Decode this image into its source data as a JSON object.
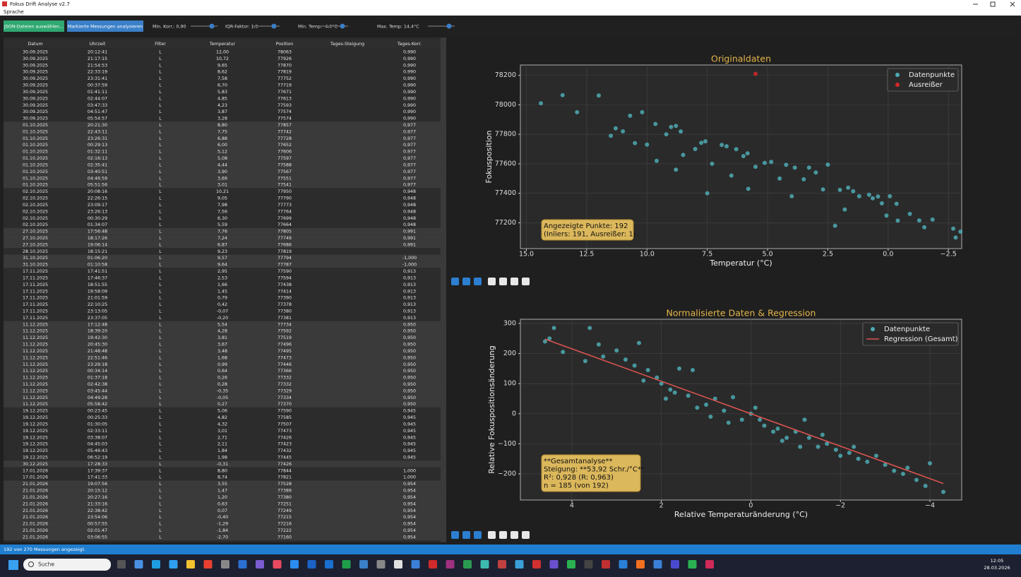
{
  "window": {
    "title": "Fokus Drift Analyse v2.7",
    "menu": "Sprache"
  },
  "toolbar": {
    "buttons": [
      "JSON-Dateien auswählen...",
      "Markierte Messungen analysieren"
    ],
    "sliders": [
      "Min. Korr.: 0,90",
      "IQR-Faktor: 1,5",
      "Min. Temp: -4,0°C",
      "Max. Temp: 14,4°C"
    ]
  },
  "table": {
    "columns": [
      "Datum",
      "Uhrzeit",
      "Filter",
      "Temperatur",
      "Position",
      "Tages-Steigung",
      "Tages-Korr."
    ],
    "rows": [
      [
        "30.09.2025",
        "20:12:41",
        "L",
        "12,00",
        "78063",
        null,
        "0,990"
      ],
      [
        "30.09.2025",
        "21:17:15",
        "L",
        "10,72",
        "77926",
        null,
        "0,990"
      ],
      [
        "30.09.2025",
        "21:54:53",
        "L",
        "9,65",
        "77870",
        null,
        "0,990"
      ],
      [
        "30.09.2025",
        "22:33:19",
        "L",
        "8,62",
        "77819",
        null,
        "0,990"
      ],
      [
        "30.09.2025",
        "23:31:41",
        "L",
        "7,58",
        "77752",
        null,
        "0,990"
      ],
      [
        "30.09.2025",
        "00:37:59",
        "L",
        "6,70",
        "77719",
        null,
        "0,990"
      ],
      [
        "30.09.2025",
        "01:41:11",
        "L",
        "5,83",
        "77671",
        null,
        "0,990"
      ],
      [
        "30.09.2025",
        "02:44:07",
        "L",
        "4,85",
        "77613",
        null,
        "0,990"
      ],
      [
        "30.09.2025",
        "03:47:33",
        "L",
        "4,23",
        "77593",
        null,
        "0,990"
      ],
      [
        "30.09.2025",
        "04:51:47",
        "L",
        "3,87",
        "77574",
        null,
        "0,990"
      ],
      [
        "30.09.2025",
        "05:54:57",
        "L",
        "3,28",
        "77574",
        null,
        "0,990"
      ],
      [
        "01.10.2025",
        "20:21:30",
        "L",
        "8,80",
        "77857",
        null,
        "0,977"
      ],
      [
        "01.10.2025",
        "22:43:11",
        "L",
        "7,75",
        "77742",
        null,
        "0,977"
      ],
      [
        "01.10.2025",
        "23:26:31",
        "L",
        "6,88",
        "77728",
        null,
        "0,977"
      ],
      [
        "01.10.2025",
        "00:29:13",
        "L",
        "6,00",
        "77652",
        null,
        "0,977"
      ],
      [
        "01.10.2025",
        "01:32:11",
        "L",
        "5,12",
        "77606",
        null,
        "0,977"
      ],
      [
        "01.10.2025",
        "02:16:13",
        "L",
        "5,08",
        "77597",
        null,
        "0,977"
      ],
      [
        "01.10.2025",
        "02:35:41",
        "L",
        "4,44",
        "77588",
        null,
        "0,977"
      ],
      [
        "01.10.2025",
        "03:40:51",
        "L",
        "3,90",
        "77567",
        null,
        "0,977"
      ],
      [
        "01.10.2025",
        "04:46:59",
        "L",
        "3,69",
        "77551",
        null,
        "0,977"
      ],
      [
        "01.10.2025",
        "05:51:56",
        "L",
        "3,01",
        "77541",
        null,
        "0,977"
      ],
      [
        "02.10.2025",
        "20:08:16",
        "L",
        "10,21",
        "77950",
        null,
        "0,948"
      ],
      [
        "02.10.2025",
        "22:26:15",
        "L",
        "9,05",
        "77790",
        null,
        "0,948"
      ],
      [
        "02.10.2025",
        "23:09:17",
        "L",
        "7,98",
        "77773",
        null,
        "0,948"
      ],
      [
        "02.10.2025",
        "23:26:13",
        "L",
        "7,56",
        "77764",
        null,
        "0,948"
      ],
      [
        "02.10.2025",
        "00:30:29",
        "L",
        "6,30",
        "77699",
        null,
        "0,948"
      ],
      [
        "02.10.2025",
        "01:34:07",
        "L",
        "5,59",
        "77664",
        null,
        "0,948"
      ],
      [
        "27.10.2025",
        "17:56:48",
        "L",
        "7,76",
        "77805",
        null,
        "0,991"
      ],
      [
        "27.10.2025",
        "18:17:26",
        "L",
        "7,24",
        "77749",
        null,
        "0,991"
      ],
      [
        "27.10.2025",
        "19:06:14",
        "L",
        "6,87",
        "77686",
        null,
        "0,991"
      ],
      [
        "28.10.2025",
        "18:15:21",
        "L",
        "9,23",
        "77819",
        null,
        null
      ],
      [
        "31.10.2025",
        "01:06:20",
        "L",
        "9,57",
        "77794",
        null,
        "-1,000"
      ],
      [
        "31.10.2025",
        "01:10:58",
        "L",
        "9,64",
        "77787",
        null,
        "-1,000"
      ],
      [
        "17.11.2025",
        "17:41:51",
        "L",
        "2,95",
        "77590",
        null,
        "0,913"
      ],
      [
        "17.11.2025",
        "17:46:37",
        "L",
        "2,53",
        "77594",
        null,
        "0,913"
      ],
      [
        "17.11.2025",
        "18:51:55",
        "L",
        "1,66",
        "77438",
        null,
        "0,913"
      ],
      [
        "17.11.2025",
        "19:58:09",
        "L",
        "1,45",
        "77414",
        null,
        "0,913"
      ],
      [
        "17.11.2025",
        "21:01:59",
        "L",
        "0,79",
        "77390",
        null,
        "0,913"
      ],
      [
        "17.11.2025",
        "22:10:25",
        "L",
        "0,42",
        "77378",
        null,
        "0,913"
      ],
      [
        "17.11.2025",
        "23:13:05",
        "L",
        "-0,07",
        "77380",
        null,
        "0,913"
      ],
      [
        "17.11.2025",
        "23:37:05",
        "L",
        "-0,20",
        "77381",
        null,
        "0,913"
      ],
      [
        "11.12.2025",
        "17:12:48",
        "L",
        "5,54",
        "77734",
        null,
        "0,950"
      ],
      [
        "11.12.2025",
        "18:39:20",
        "L",
        "4,28",
        "77592",
        null,
        "0,950"
      ],
      [
        "11.12.2025",
        "19:42:30",
        "L",
        "3,81",
        "77519",
        null,
        "0,950"
      ],
      [
        "11.12.2025",
        "20:45:30",
        "L",
        "3,67",
        "77496",
        null,
        "0,950"
      ],
      [
        "11.12.2025",
        "21:48:48",
        "L",
        "3,48",
        "77495",
        null,
        "0,950"
      ],
      [
        "11.12.2025",
        "22:51:46",
        "L",
        "1,68",
        "77473",
        null,
        "0,950"
      ],
      [
        "11.12.2025",
        "23:29:18",
        "L",
        "0,99",
        "77446",
        null,
        "0,950"
      ],
      [
        "11.12.2025",
        "00:34:14",
        "L",
        "0,64",
        "77366",
        null,
        "0,950"
      ],
      [
        "11.12.2025",
        "01:37:18",
        "L",
        "0,26",
        "77332",
        null,
        "0,950"
      ],
      [
        "11.12.2025",
        "02:42:38",
        "L",
        "0,28",
        "77332",
        null,
        "0,950"
      ],
      [
        "11.12.2025",
        "03:45:44",
        "L",
        "-0,35",
        "77329",
        null,
        "0,950"
      ],
      [
        "11.12.2025",
        "04:49:28",
        "L",
        "-0,05",
        "77334",
        null,
        "0,950"
      ],
      [
        "11.12.2025",
        "05:58:42",
        "L",
        "0,27",
        "77370",
        null,
        "0,950"
      ],
      [
        "19.12.2025",
        "00:23:45",
        "L",
        "5,06",
        "77590",
        null,
        "0,945"
      ],
      [
        "19.12.2025",
        "00:25:33",
        "L",
        "4,82",
        "77585",
        null,
        "0,945"
      ],
      [
        "19.12.2025",
        "01:30:05",
        "L",
        "4,32",
        "77507",
        null,
        "0,945"
      ],
      [
        "19.12.2025",
        "02:33:11",
        "L",
        "3,01",
        "77473",
        null,
        "0,945"
      ],
      [
        "19.12.2025",
        "03:38:07",
        "L",
        "2,71",
        "77426",
        null,
        "0,945"
      ],
      [
        "19.12.2025",
        "04:45:03",
        "L",
        "2,11",
        "77423",
        null,
        "0,945"
      ],
      [
        "19.12.2025",
        "05:46:43",
        "L",
        "1,84",
        "77432",
        null,
        "0,945"
      ],
      [
        "19.12.2025",
        "06:52:19",
        "L",
        "1,98",
        "77445",
        null,
        "0,945"
      ],
      [
        "30.12.2025",
        "17:28:33",
        "L",
        "-0,31",
        "77426",
        null,
        null
      ],
      [
        "17.01.2026",
        "17:39:37",
        "L",
        "8,80",
        "77844",
        null,
        "1,000"
      ],
      [
        "17.01.2026",
        "17:41:33",
        "L",
        "8,74",
        "77821",
        null,
        "1,000"
      ],
      [
        "21.01.2026",
        "19:07:56",
        "L",
        "3,55",
        "77528",
        null,
        "0,954"
      ],
      [
        "21.01.2026",
        "20:15:12",
        "L",
        "1,47",
        "77389",
        null,
        "0,954"
      ],
      [
        "21.01.2026",
        "20:27:16",
        "L",
        "1,20",
        "77380",
        null,
        "0,954"
      ],
      [
        "21.01.2026",
        "21:33:16",
        "L",
        "0,63",
        "77251",
        null,
        "0,954"
      ],
      [
        "21.01.2026",
        "22:38:42",
        "L",
        "0,07",
        "77249",
        null,
        "0,954"
      ],
      [
        "21.01.2026",
        "23:54:06",
        "L",
        "-0,40",
        "77215",
        null,
        "0,954"
      ],
      [
        "21.01.2026",
        "00:57:55",
        "L",
        "-1,29",
        "77216",
        null,
        "0,954"
      ],
      [
        "21.01.2026",
        "02:01:47",
        "L",
        "-1,84",
        "77222",
        null,
        "0,954"
      ],
      [
        "21.01.2026",
        "03:06:55",
        "L",
        "-2,70",
        "77160",
        null,
        "0,954"
      ]
    ]
  },
  "status": "192 von 270 Messungen angezeigt.",
  "taskbar": {
    "search": "Suche",
    "time": "12:05",
    "date": "28.03.2026"
  },
  "chart_data": [
    {
      "type": "scatter",
      "title": "Originaldaten",
      "x_label": "Temperatur (°C)",
      "y_label": "Fokusposition",
      "xlim": [
        15.25,
        -3.05
      ],
      "ylim": [
        77025,
        78270
      ],
      "xticks": [
        {
          "value": 15,
          "label": "15.0"
        },
        {
          "value": 12.5,
          "label": "12.5"
        },
        {
          "value": 10,
          "label": "10.0"
        },
        {
          "value": 7.5,
          "label": "7.5"
        },
        {
          "value": 5,
          "label": "5.0"
        },
        {
          "value": 2.5,
          "label": "2.5"
        },
        {
          "value": 0,
          "label": "0.0"
        },
        {
          "value": -2.5,
          "label": "−2.5"
        }
      ],
      "yticks": [
        77200,
        77400,
        77600,
        77800,
        78000,
        78200
      ],
      "grid": true,
      "legend": "upper right",
      "series": [
        {
          "name": "Datenpunkte",
          "color": "#4eaab3",
          "kind": "scatter",
          "x": [
            14.4,
            13.5,
            12.0,
            12.9,
            11.5,
            11.3,
            11.0,
            10.7,
            10.2,
            10.5,
            10.0,
            9.65,
            9.6,
            9.2,
            9.0,
            8.8,
            8.6,
            8.5,
            8.8,
            8.0,
            7.75,
            7.58,
            7.3,
            6.9,
            6.7,
            6.3,
            6.0,
            5.83,
            5.5,
            5.12,
            4.85,
            4.5,
            4.23,
            3.87,
            3.5,
            3.28,
            3.0,
            2.7,
            2.5,
            2.0,
            1.66,
            1.45,
            1.2,
            0.79,
            0.64,
            0.42,
            0.26,
            0.07,
            -0.07,
            -0.35,
            -0.4,
            -1.29,
            -1.84,
            -2.7,
            -2.8,
            -3.0,
            -1.5,
            -0.9,
            1.8,
            2.2,
            4.0,
            6.5,
            7.5,
            5.8
          ],
          "y": [
            78010,
            78065,
            78063,
            77950,
            77790,
            77840,
            77820,
            77926,
            77950,
            77740,
            77730,
            77870,
            77620,
            77800,
            77850,
            77857,
            77819,
            77660,
            77560,
            77700,
            77742,
            77752,
            77600,
            77728,
            77719,
            77699,
            77652,
            77671,
            77580,
            77606,
            77613,
            77500,
            77593,
            77574,
            77495,
            77574,
            77541,
            77426,
            77594,
            77423,
            77438,
            77414,
            77380,
            77390,
            77366,
            77378,
            77332,
            77249,
            77380,
            77329,
            77215,
            77216,
            77222,
            77160,
            77100,
            77140,
            77170,
            77260,
            77290,
            77180,
            77380,
            77520,
            77400,
            77430
          ]
        },
        {
          "name": "Ausreißer",
          "color": "#d62728",
          "kind": "scatter",
          "x": [
            5.5
          ],
          "y": [
            78210
          ]
        }
      ],
      "annotation": [
        "Angezeigte Punkte: 192",
        "(Inliers: 191, Ausreißer: 1)"
      ]
    },
    {
      "type": "scatter",
      "title": "Normalisierte Daten & Regression",
      "x_label": "Relative Temperaturänderung (°C)",
      "y_label": "Relative Fokuspositionsänderung",
      "xlim": [
        5.15,
        -4.71
      ],
      "ylim": [
        -287,
        314
      ],
      "xticks": [
        4,
        2,
        0,
        {
          "value": -2,
          "label": "−2"
        },
        {
          "value": -4,
          "label": "−4"
        }
      ],
      "yticks": [
        {
          "value": -200,
          "label": "−200"
        },
        {
          "value": -100,
          "label": "−100"
        },
        0,
        100,
        200,
        300
      ],
      "grid": true,
      "legend": "upper right",
      "series": [
        {
          "name": "Datenpunkte",
          "color": "#4eaab3",
          "kind": "scatter",
          "x": [
            4.6,
            4.4,
            4.2,
            3.6,
            3.3,
            3.0,
            2.6,
            2.5,
            2.3,
            2.1,
            2.0,
            1.8,
            1.6,
            1.4,
            1.2,
            1.0,
            0.8,
            0.6,
            0.4,
            0.2,
            0.0,
            -0.2,
            -0.3,
            -0.5,
            -0.6,
            -0.8,
            -1.0,
            -1.1,
            -1.3,
            -1.5,
            -1.7,
            -1.9,
            -2.0,
            -2.2,
            -2.4,
            -2.6,
            -2.8,
            -3.0,
            -3.2,
            -3.5,
            -3.7,
            -3.9,
            -4.0,
            -4.3,
            2.8,
            3.4,
            1.7,
            1.3,
            0.9,
            -0.1,
            -1.2,
            -2.3,
            -3.4,
            0.5,
            1.9,
            4.5,
            3.7,
            -0.7,
            -1.6,
            2.4
          ],
          "y": [
            240,
            285,
            205,
            285,
            190,
            210,
            160,
            235,
            145,
            120,
            100,
            80,
            150,
            60,
            20,
            30,
            50,
            10,
            55,
            -20,
            0,
            -20,
            -40,
            -60,
            -50,
            -80,
            -60,
            -110,
            -80,
            -110,
            -100,
            -120,
            -140,
            -130,
            -150,
            -160,
            -140,
            -170,
            -190,
            -180,
            -220,
            -240,
            -165,
            -260,
            180,
            230,
            70,
            145,
            -10,
            20,
            -20,
            -110,
            -200,
            -30,
            50,
            250,
            175,
            -90,
            -70,
            110
          ]
        },
        {
          "name": "Regression (Gesamt)",
          "color": "#d9534f",
          "kind": "line",
          "x": [
            4.6,
            -4.3
          ],
          "y": [
            248,
            -232
          ]
        }
      ],
      "annotation": [
        "**Gesamtanalyse**",
        "Steigung: **53,92 Schr./°C**",
        "R²: 0,928 (R: 0,963)",
        "n = 185 (von 192)"
      ]
    }
  ]
}
